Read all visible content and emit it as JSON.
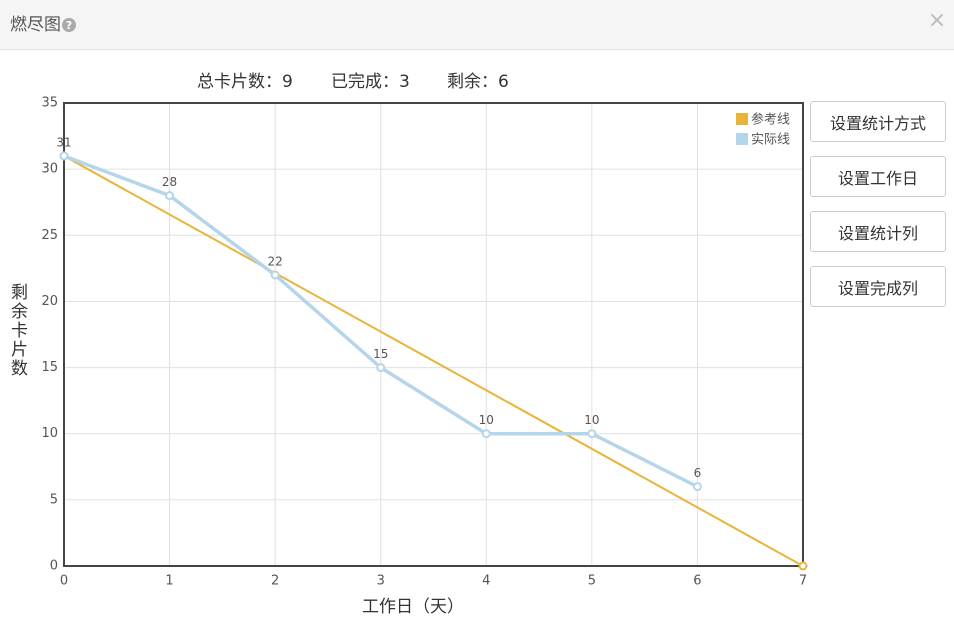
{
  "header": {
    "title": "燃尽图",
    "help": "?",
    "close": "×"
  },
  "stats": [
    "总卡片数：9",
    "已完成：3",
    "剩余：6"
  ],
  "buttons": [
    "设置统计方式",
    "设置工作日",
    "设置统计列",
    "设置完成列"
  ],
  "chart_data": {
    "type": "line",
    "x_label": "工作日（天）",
    "y_label": "剩余卡片数",
    "xlim": [
      0,
      7
    ],
    "xticks": [
      0,
      1,
      2,
      3,
      4,
      5,
      6,
      7
    ],
    "ylim": [
      0,
      35
    ],
    "yticks": [
      0,
      5,
      10,
      15,
      20,
      25,
      30,
      35
    ],
    "grid": true,
    "legend": "top-right",
    "series": [
      {
        "name": "参考线",
        "color": "#e8b43a",
        "x": [
          0,
          7
        ],
        "values": [
          31,
          0
        ]
      },
      {
        "name": "实际线",
        "color": "#b5d5ea",
        "x": [
          0,
          1,
          2,
          3,
          4,
          5,
          6
        ],
        "values": [
          31,
          28,
          22,
          15,
          10,
          10,
          6
        ]
      }
    ]
  }
}
